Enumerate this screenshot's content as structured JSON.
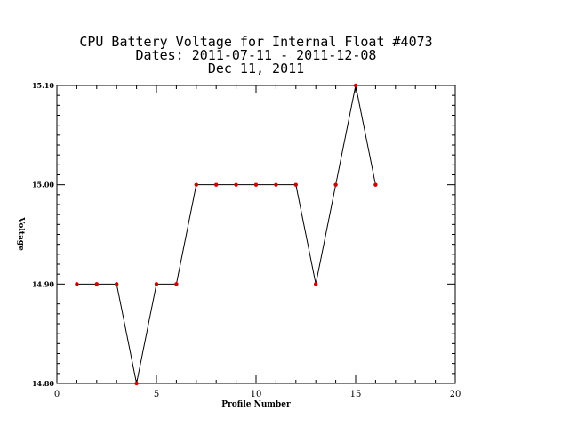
{
  "chart_data": {
    "type": "line",
    "title_lines": [
      "CPU Battery Voltage for Internal Float #4073",
      "Dates:  2011-07-11 -  2011-12-08",
      "Dec 11, 2011"
    ],
    "xlabel": "Profile Number",
    "ylabel": "Voltage",
    "xlim": [
      0,
      20
    ],
    "ylim": [
      14.8,
      15.1
    ],
    "x_ticks": [
      "0",
      "5",
      "10",
      "15",
      "20"
    ],
    "y_ticks": [
      "14.80",
      "14.90",
      "15.00",
      "15.10"
    ],
    "x_tick_values": [
      0,
      5,
      10,
      15,
      20
    ],
    "y_tick_values": [
      14.8,
      14.9,
      15.0,
      15.1
    ],
    "x_minor_step": 1,
    "y_minor_step": 0.01,
    "grid": false,
    "series": [
      {
        "x": [
          1,
          2,
          3,
          4,
          5,
          6,
          7,
          8,
          9,
          10,
          11,
          12,
          13,
          14,
          15,
          16
        ],
        "values": [
          14.9,
          14.9,
          14.9,
          14.8,
          14.9,
          14.9,
          15.0,
          15.0,
          15.0,
          15.0,
          15.0,
          15.0,
          14.9,
          15.0,
          15.1,
          15.0
        ],
        "line_color": "#000000",
        "marker_color": "#cc0000"
      }
    ]
  }
}
